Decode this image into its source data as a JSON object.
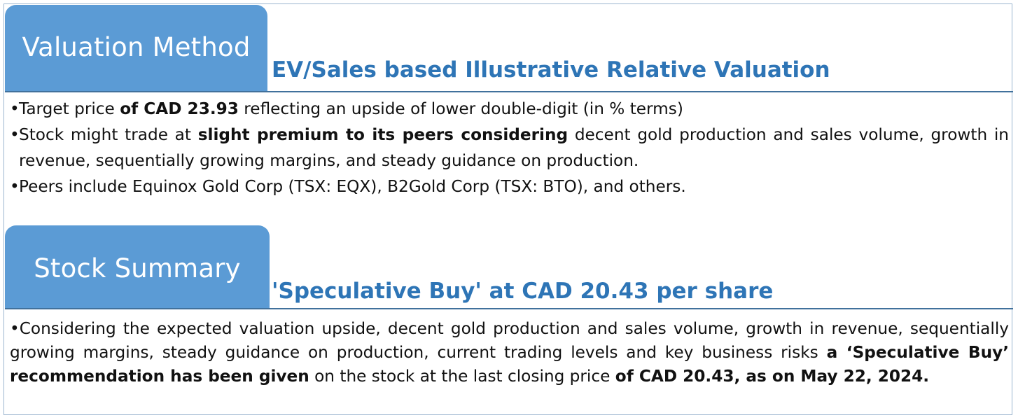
{
  "section1": {
    "tab_label": "Valuation Method",
    "subtitle": "EV/Sales based Illustrative Relative Valuation",
    "bullets": [
      {
        "parts": [
          {
            "text": "Target price ",
            "bold": false
          },
          {
            "text": "of CAD 23.93",
            "bold": true
          },
          {
            "text": " reflecting an upside of lower double-digit (in % terms)",
            "bold": false
          }
        ]
      },
      {
        "parts": [
          {
            "text": "Stock might trade at ",
            "bold": false
          },
          {
            "text": "slight premium to its peers considering",
            "bold": true
          },
          {
            "text": " decent gold production and sales volume, growth in revenue, sequentially growing margins, and steady guidance on production.",
            "bold": false
          }
        ]
      },
      {
        "parts": [
          {
            "text": "Peers include Equinox Gold Corp (TSX: EQX), B2Gold Corp (TSX: BTO), and others.",
            "bold": false
          }
        ]
      }
    ]
  },
  "section2": {
    "tab_label": "Stock Summary",
    "subtitle": "'Speculative Buy' at CAD 20.43 per share",
    "paragraph": {
      "parts": [
        {
          "text": "Considering the expected valuation upside, decent gold production and sales volume, growth in revenue, sequentially growing margins, steady guidance on production, current trading levels and key business risks ",
          "bold": false
        },
        {
          "text": "a ‘Speculative Buy’ recommendation has been given",
          "bold": true
        },
        {
          "text": " on the stock at the last closing price ",
          "bold": false
        },
        {
          "text": "of CAD 20.43, as on May 22, 2024.",
          "bold": true
        }
      ]
    }
  },
  "bullet_symbol": "•",
  "colors": {
    "tab_fill": "#5b9bd5",
    "subtitle_text": "#2e75b6",
    "rule": "#41719c"
  }
}
